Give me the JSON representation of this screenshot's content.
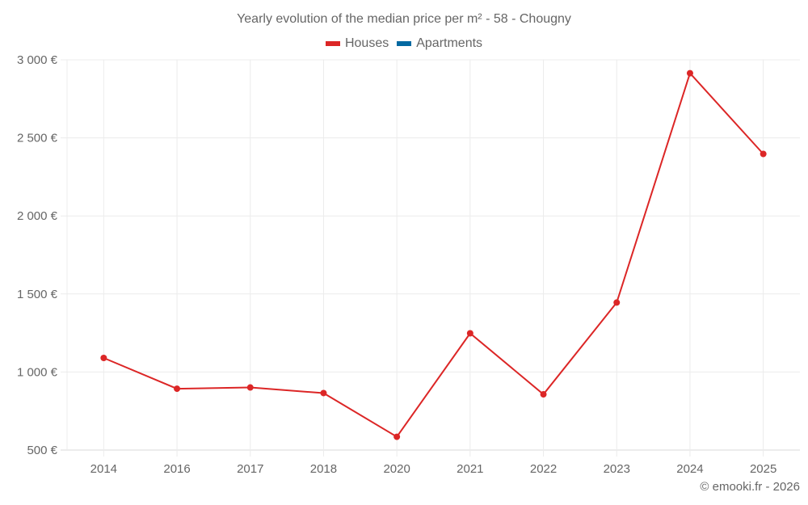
{
  "chart_data": {
    "type": "line",
    "title": "Yearly evolution of the median price per m² - 58 - Chougny",
    "xlabel": "",
    "ylabel": "",
    "categories": [
      "2014",
      "2016",
      "2017",
      "2018",
      "2020",
      "2021",
      "2022",
      "2023",
      "2024",
      "2025"
    ],
    "series": [
      {
        "name": "Houses",
        "color": "#dc2626",
        "values": [
          1090,
          893,
          901,
          865,
          585,
          1248,
          857,
          1445,
          2914,
          2397
        ]
      },
      {
        "name": "Apartments",
        "color": "#0369a1",
        "values": []
      }
    ],
    "ylim": [
      500,
      3000
    ],
    "yticks": [
      500,
      1000,
      1500,
      2000,
      2500,
      3000
    ],
    "ytick_labels": [
      "500 €",
      "1 000 €",
      "1 500 €",
      "2 000 €",
      "2 500 €",
      "3 000 €"
    ],
    "grid": true,
    "legend_position": "top"
  },
  "header": {
    "title": "Yearly evolution of the median price per m² - 58 - Chougny"
  },
  "legend": {
    "items": [
      {
        "label": "Houses",
        "color": "#dc2626"
      },
      {
        "label": "Apartments",
        "color": "#0369a1"
      }
    ]
  },
  "footer": {
    "credit": "© emooki.fr - 2026"
  }
}
